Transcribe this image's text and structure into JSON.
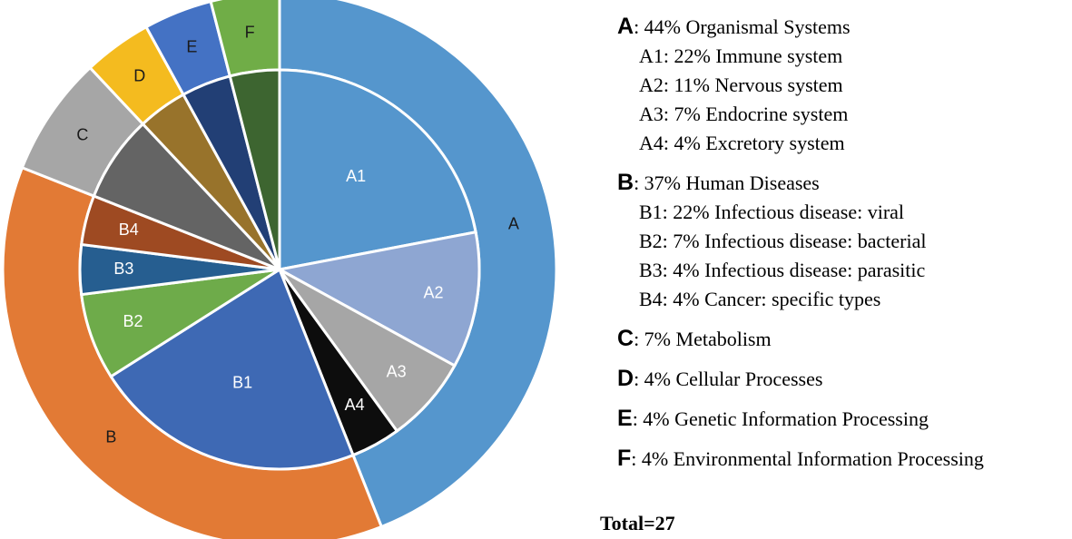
{
  "chart_data": {
    "type": "pie",
    "subtype": "nested-donut",
    "outer_ring": {
      "name": "Category",
      "slices": [
        {
          "label": "A",
          "value": 44,
          "color": "#5596CD"
        },
        {
          "label": "B",
          "value": 37,
          "color": "#E27A35"
        },
        {
          "label": "C",
          "value": 7,
          "color": "#A6A6A6"
        },
        {
          "label": "D",
          "value": 4,
          "color": "#F4BB1F"
        },
        {
          "label": "E",
          "value": 4,
          "color": "#4472C4"
        },
        {
          "label": "F",
          "value": 4,
          "color": "#70AD47"
        }
      ]
    },
    "inner_pie": {
      "name": "Subcategory",
      "slices": [
        {
          "label": "A1",
          "value": 22,
          "color": "#5596CD",
          "label_color": "#ffffff"
        },
        {
          "label": "A2",
          "value": 11,
          "color": "#8EA6D2",
          "label_color": "#ffffff"
        },
        {
          "label": "A3",
          "value": 7,
          "color": "#A6A6A6",
          "label_color": "#ffffff"
        },
        {
          "label": "A4",
          "value": 4,
          "color": "#0D0D0D",
          "label_color": "#ffffff"
        },
        {
          "label": "B1",
          "value": 22,
          "color": "#3E69B4",
          "label_color": "#ffffff"
        },
        {
          "label": "B2",
          "value": 7,
          "color": "#6EAB4A",
          "label_color": "#ffffff"
        },
        {
          "label": "B3",
          "value": 4,
          "color": "#265E90",
          "label_color": "#ffffff"
        },
        {
          "label": "B4",
          "value": 4,
          "color": "#9E4A22",
          "label_color": "#ffffff"
        },
        {
          "label": "",
          "value": 7,
          "color": "#646464",
          "label_color": "#ffffff"
        },
        {
          "label": "",
          "value": 4,
          "color": "#98732B",
          "label_color": "#ffffff"
        },
        {
          "label": "",
          "value": 4,
          "color": "#223F75",
          "label_color": "#ffffff"
        },
        {
          "label": "",
          "value": 4,
          "color": "#3D6530",
          "label_color": "#ffffff"
        }
      ]
    },
    "total_value": 27
  },
  "legend": [
    {
      "letter": "A",
      "text": ": 44% Organismal Systems",
      "subs": [
        "A1: 22% Immune system",
        "A2: 11% Nervous system",
        "A3: 7% Endocrine system",
        "A4: 4% Excretory system"
      ]
    },
    {
      "letter": "B",
      "text": ": 37% Human Diseases",
      "subs": [
        "B1: 22% Infectious disease: viral",
        "B2: 7% Infectious disease: bacterial",
        "B3:  4% Infectious disease: parasitic",
        "B4: 4% Cancer: specific types"
      ]
    },
    {
      "letter": "C",
      "text": ": 7% Metabolism",
      "subs": []
    },
    {
      "letter": "D",
      "text": ": 4% Cellular Processes",
      "subs": []
    },
    {
      "letter": "E",
      "text": ": 4% Genetic Information Processing",
      "subs": []
    },
    {
      "letter": "F",
      "text": ":  4% Environmental Information Processing",
      "subs": []
    }
  ],
  "total_label": "Total=27"
}
